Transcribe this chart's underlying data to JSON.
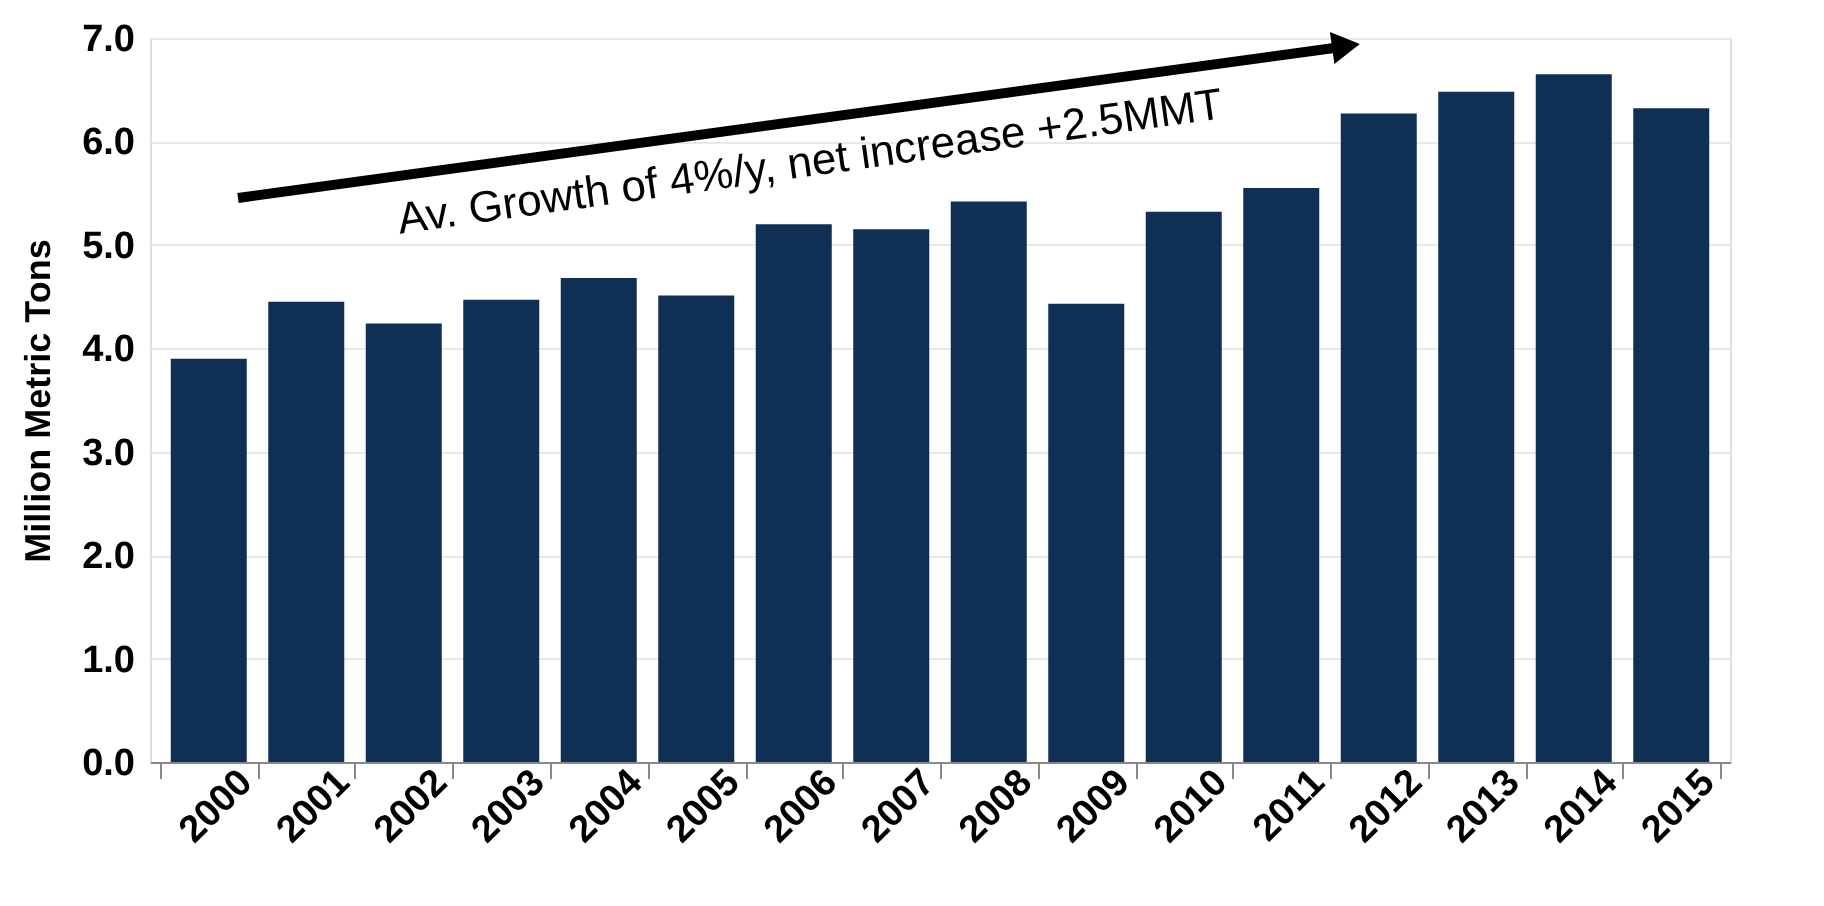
{
  "chart_data": {
    "type": "bar",
    "ylabel": "Million Metric Tons",
    "categories": [
      "2000",
      "2001",
      "2002",
      "2003",
      "2004",
      "2005",
      "2006",
      "2007",
      "2008",
      "2009",
      "2010",
      "2011",
      "2012",
      "2013",
      "2014",
      "2015"
    ],
    "values": [
      3.9,
      4.45,
      4.24,
      4.47,
      4.68,
      4.51,
      5.2,
      5.15,
      5.42,
      4.43,
      5.32,
      5.55,
      6.27,
      6.48,
      6.65,
      6.32
    ],
    "color": "#102f55",
    "ylim": [
      0,
      7
    ],
    "yticks": [
      {
        "value": 0,
        "label": "0.0"
      },
      {
        "value": 1,
        "label": "1.0"
      },
      {
        "value": 2,
        "label": "2.0"
      },
      {
        "value": 3,
        "label": "3.0"
      },
      {
        "value": 4,
        "label": "4.0"
      },
      {
        "value": 5,
        "label": "5.0"
      },
      {
        "value": 6,
        "label": "6.0"
      },
      {
        "value": 7,
        "label": "7.0"
      }
    ],
    "grid": "y",
    "annotations": [
      "Av. Growth of 4%/y, net increase +2.5MMT"
    ]
  }
}
